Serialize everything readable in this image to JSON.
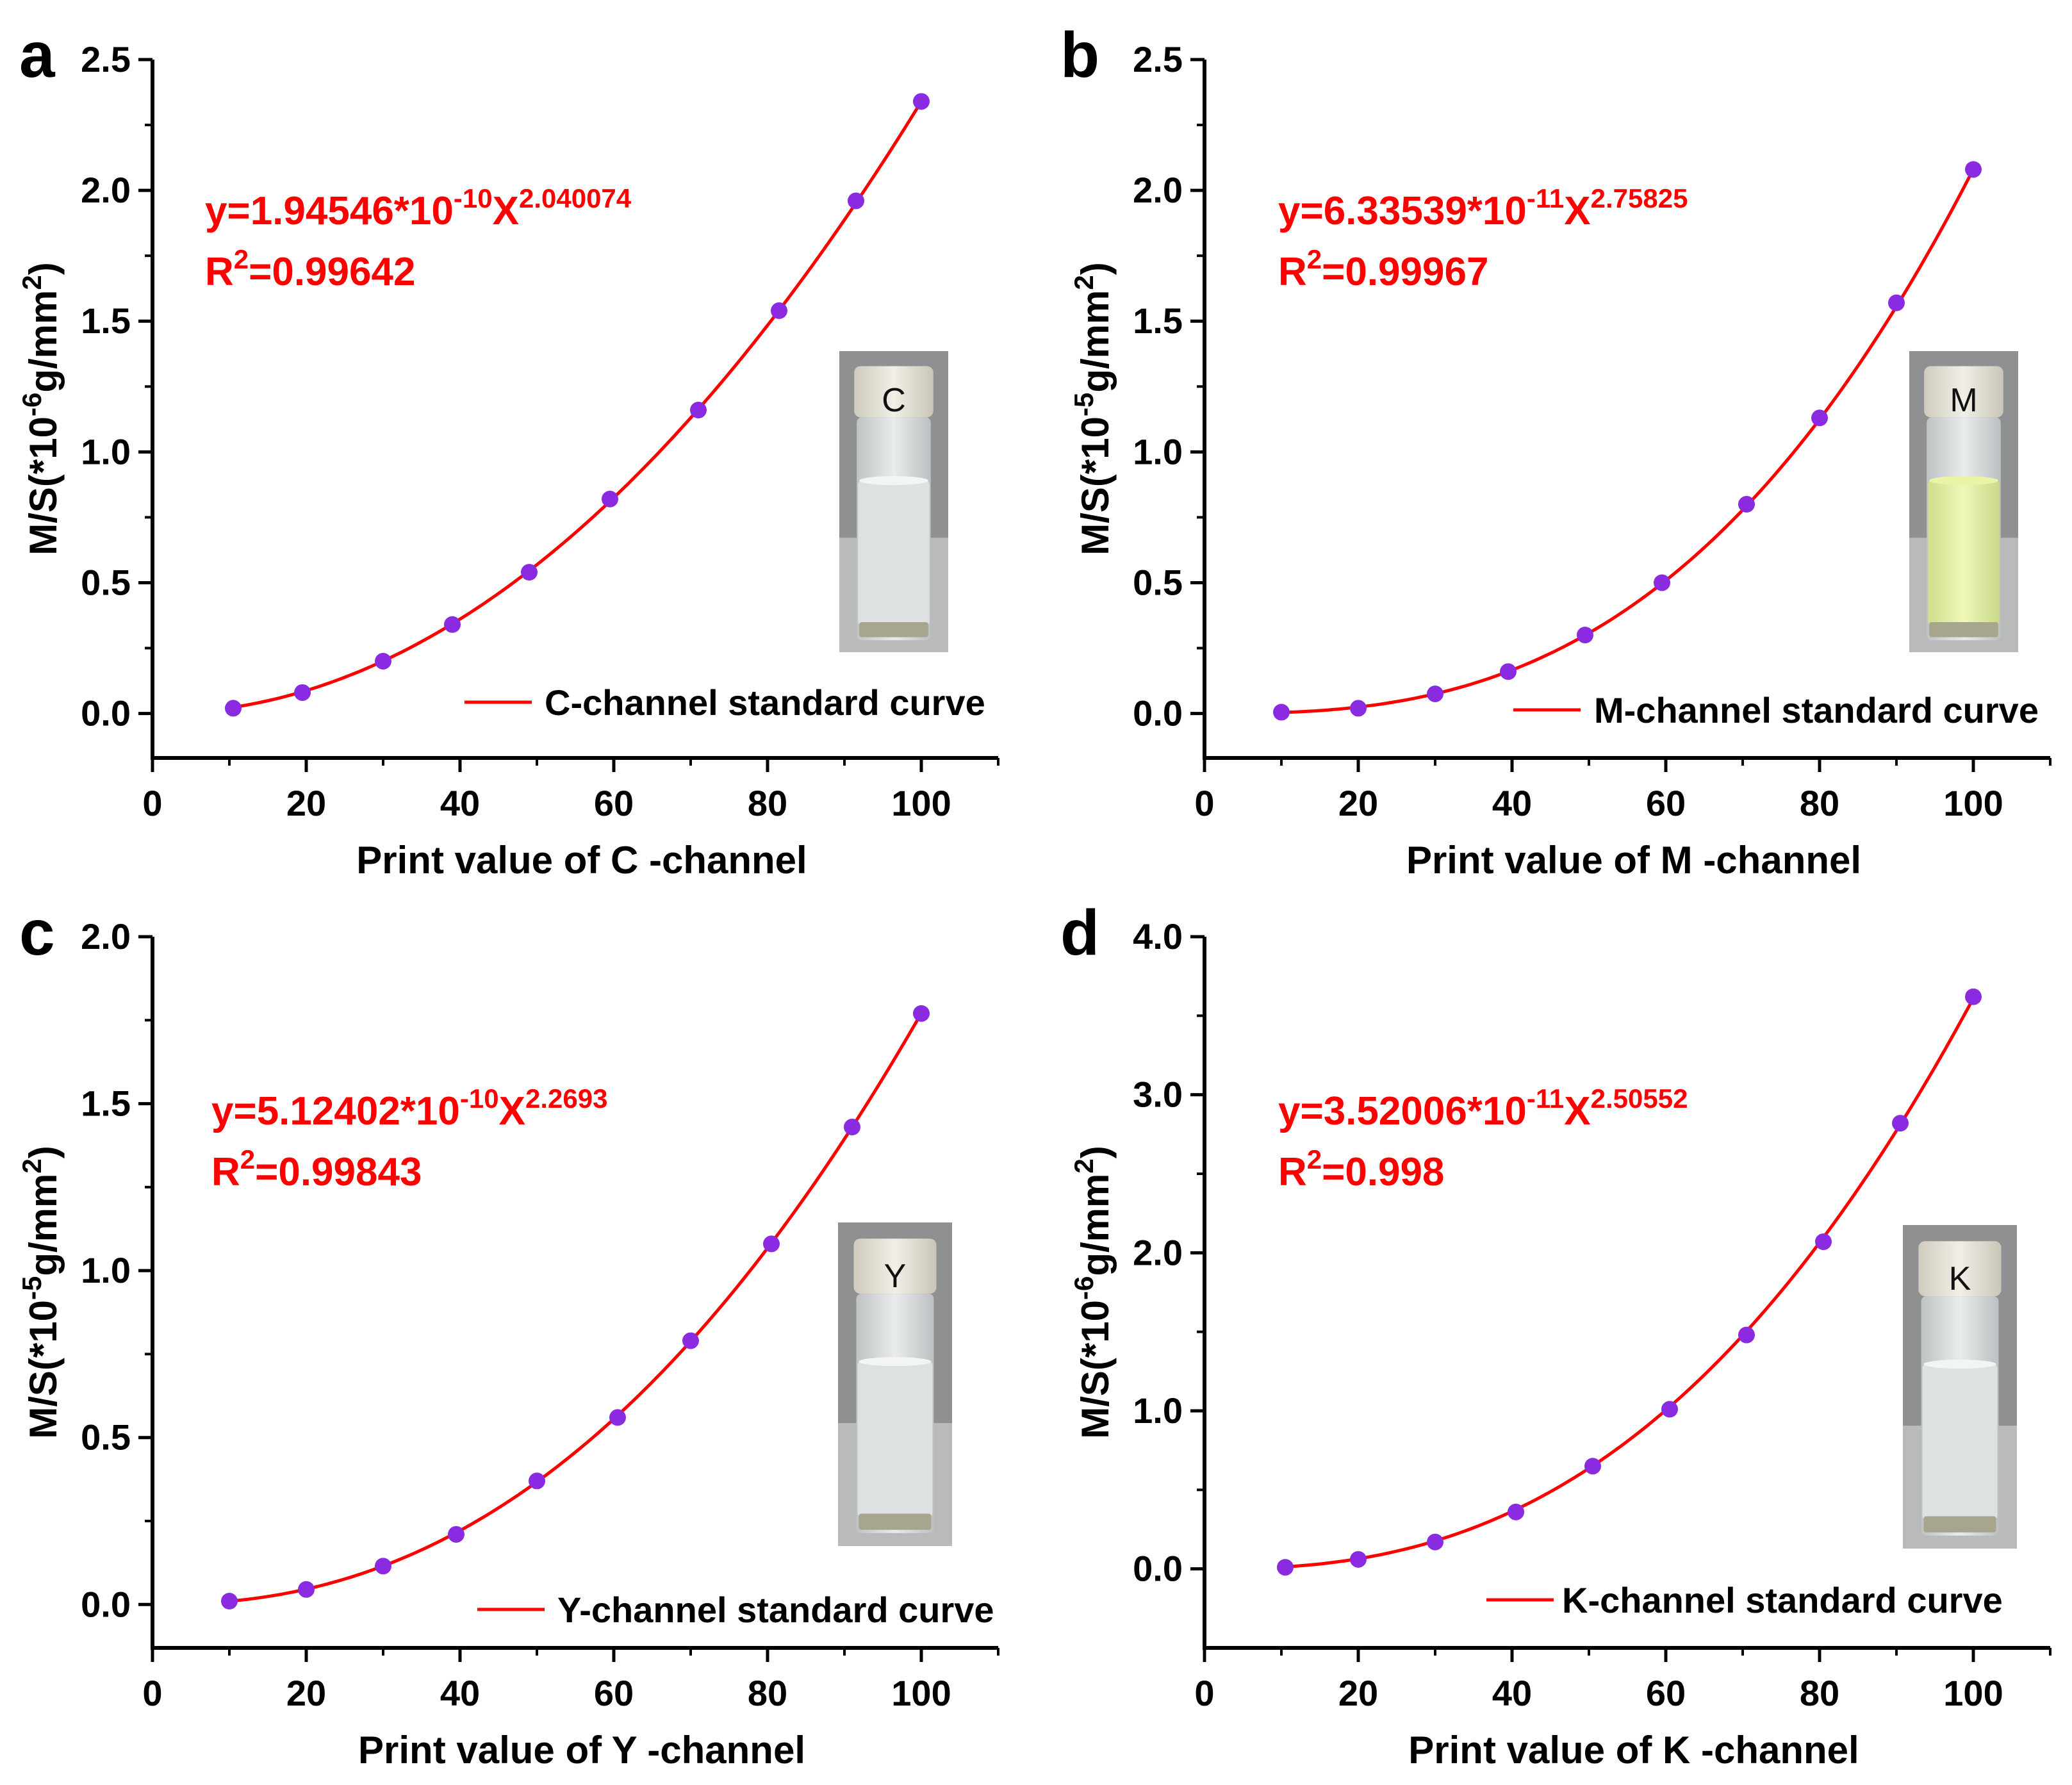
{
  "colors": {
    "curve": "#ff0000",
    "point": "#8a2be2",
    "axis": "#000000",
    "equation": "#ff0000"
  },
  "chart_data": [
    {
      "panel": "a",
      "type": "scatter",
      "xlabel": "Print value of C -channel",
      "ylabel": {
        "base": "M/S(*10",
        "exp": "-6",
        "unit": "g/mm",
        "unit_exp": "2",
        "close": ")"
      },
      "xlim": [
        0,
        110
      ],
      "ylim": [
        -0.17,
        2.5
      ],
      "xticks": [
        "0",
        "20",
        "40",
        "60",
        "80",
        "100"
      ],
      "yticks": [
        "0.0",
        "0.5",
        "1.0",
        "1.5",
        "2.0",
        "2.5"
      ],
      "series": [
        {
          "name": "C-channel standard curve",
          "x": [
            10.5,
            19.5,
            30,
            39,
            49,
            59.5,
            71,
            81.5,
            91.5,
            100
          ],
          "y": [
            0.02,
            0.08,
            0.2,
            0.34,
            0.54,
            0.82,
            1.16,
            1.54,
            1.96,
            2.34
          ]
        }
      ],
      "fit": {
        "coef": 1.94546e-10,
        "exp": 2.040074,
        "scale": 1000000.0,
        "x_start": 10,
        "x_end": 100
      },
      "equation": {
        "prefix": "y=1.94546*10",
        "pow": "-10",
        "mid": "X",
        "exp": "2.040074"
      },
      "r2": {
        "lead": "R",
        "sup": "2",
        "value": "=0.99642"
      },
      "inset": {
        "cap_label": "C",
        "liquid": "clear"
      }
    },
    {
      "panel": "b",
      "type": "scatter",
      "xlabel": "Print value of M -channel",
      "ylabel": {
        "base": "M/S(*10",
        "exp": "-5",
        "unit": "g/mm",
        "unit_exp": "2",
        "close": ")"
      },
      "xlim": [
        0,
        110
      ],
      "ylim": [
        -0.17,
        2.5
      ],
      "xticks": [
        "0",
        "20",
        "40",
        "60",
        "80",
        "100"
      ],
      "yticks": [
        "0.0",
        "0.5",
        "1.0",
        "1.5",
        "2.0",
        "2.5"
      ],
      "series": [
        {
          "name": "M-channel standard curve",
          "x": [
            10,
            20,
            30,
            39.5,
            49.5,
            59.5,
            70.5,
            80,
            90,
            100
          ],
          "y": [
            0.005,
            0.02,
            0.075,
            0.16,
            0.3,
            0.5,
            0.8,
            1.13,
            1.57,
            2.08
          ]
        }
      ],
      "fit": {
        "coef": 6.33539e-11,
        "exp": 2.75825,
        "scale": 100000.0,
        "x_start": 10,
        "x_end": 100
      },
      "equation": {
        "prefix": "y=6.33539*10",
        "pow": "-11",
        "mid": "X",
        "exp": "2.75825"
      },
      "r2": {
        "lead": "R",
        "sup": "2",
        "value": "=0.99967"
      },
      "inset": {
        "cap_label": "M",
        "liquid": "yellow"
      }
    },
    {
      "panel": "c",
      "type": "scatter",
      "xlabel": "Print value of Y -channel",
      "ylabel": {
        "base": "M/S(*10",
        "exp": "-5",
        "unit": "g/mm",
        "unit_exp": "2",
        "close": ")"
      },
      "xlim": [
        0,
        110
      ],
      "ylim": [
        -0.13,
        2.0
      ],
      "xticks": [
        "0",
        "20",
        "40",
        "60",
        "80",
        "100"
      ],
      "yticks": [
        "0.0",
        "0.5",
        "1.0",
        "1.5",
        "2.0"
      ],
      "series": [
        {
          "name": "Y-channel standard curve",
          "x": [
            10,
            20,
            30,
            39.5,
            50,
            60.5,
            70,
            80.5,
            91,
            100
          ],
          "y": [
            0.01,
            0.045,
            0.115,
            0.21,
            0.37,
            0.56,
            0.79,
            1.08,
            1.43,
            1.77
          ]
        }
      ],
      "fit": {
        "coef": 5.12402e-10,
        "exp": 2.2693,
        "scale": 100000.0,
        "x_start": 10,
        "x_end": 100
      },
      "equation": {
        "prefix": "y=5.12402*10",
        "pow": "-10",
        "mid": "X",
        "exp": "2.2693"
      },
      "r2": {
        "lead": "R",
        "sup": "2",
        "value": "=0.99843"
      },
      "inset": {
        "cap_label": "Y",
        "liquid": "clear"
      }
    },
    {
      "panel": "d",
      "type": "scatter",
      "xlabel": "Print value of K -channel",
      "ylabel": {
        "base": "M/S(*10",
        "exp": "-6",
        "unit": "g/mm",
        "unit_exp": "2",
        "close": ")"
      },
      "xlim": [
        0,
        110
      ],
      "ylim": [
        -0.5,
        4.0
      ],
      "xticks": [
        "0",
        "20",
        "40",
        "60",
        "80",
        "100"
      ],
      "yticks": [
        "0.0",
        "1.0",
        "2.0",
        "3.0",
        "4.0"
      ],
      "series": [
        {
          "name": "K-channel standard curve",
          "x": [
            10.5,
            20,
            30,
            40.5,
            50.5,
            60.5,
            70.5,
            80.5,
            90.5,
            100
          ],
          "y": [
            0.01,
            0.06,
            0.17,
            0.36,
            0.65,
            1.01,
            1.48,
            2.07,
            2.82,
            3.62
          ]
        }
      ],
      "fit": {
        "coef": 3.52006e-11,
        "exp": 2.50552,
        "scale": 1000000.0,
        "x_start": 10,
        "x_end": 100
      },
      "equation": {
        "prefix": "y=3.52006*10",
        "pow": "-11",
        "mid": "X",
        "exp": "2.50552"
      },
      "r2": {
        "lead": "R",
        "sup": "2",
        "value": "=0.998"
      },
      "inset": {
        "cap_label": "K",
        "liquid": "clear"
      }
    }
  ]
}
